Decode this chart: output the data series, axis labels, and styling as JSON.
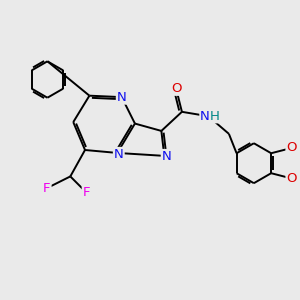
{
  "bg_color": "#eaeaea",
  "bond_color": "#000000",
  "atom_colors": {
    "N": "#1010ee",
    "O": "#dd0000",
    "F": "#ee00ee",
    "NH_color": "#008888",
    "C": "#000000"
  },
  "font_size": 8.5,
  "bond_width": 1.4,
  "fig_size": [
    3.0,
    3.0
  ],
  "dpi": 100
}
